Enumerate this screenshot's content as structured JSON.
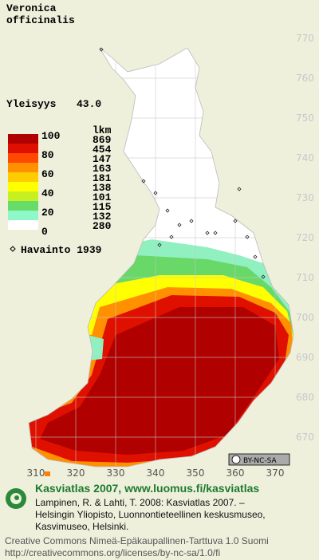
{
  "map": {
    "title_lines": [
      "Veronica",
      "officinalis"
    ],
    "frequency_label": "Yleisyys",
    "frequency_value": "43.0",
    "legend": {
      "header": "lkm",
      "scale_labels": [
        "100",
        "80",
        "60",
        "40",
        "20",
        "0"
      ],
      "counts": [
        "869",
        "454",
        "147",
        "163",
        "181",
        "138",
        "101",
        "115",
        "132",
        "280"
      ],
      "colors": [
        "#b00000",
        "#e01000",
        "#ff4800",
        "#ff9000",
        "#ffcc00",
        "#ffff00",
        "#c8f020",
        "#68dc68",
        "#90f8c8",
        "#d0ffff"
      ]
    },
    "observation_label": "Havainto 1939",
    "grid": {
      "yticks": [
        770,
        760,
        750,
        740,
        730,
        720,
        710,
        700,
        690,
        680,
        670
      ],
      "xticks": [
        310,
        320,
        330,
        340,
        350,
        360,
        370
      ]
    },
    "license_badge": "BY-NC-SA"
  },
  "footer": {
    "site": "Kasviatlas 2007, www.luomus.fi/kasviatlas",
    "citation": [
      "Lampinen, R. & Lahti, T. 2008: Kasviatlas 2007. –",
      "Helsingin Yliopisto, Luonnontieteellinen keskusmuseo,",
      "Kasvimuseo, Helsinki."
    ],
    "license": [
      "Creative Commons Nimeä-Epäkaupallinen-Tarttuva 1.0 Suomi",
      "http://creativecommons.org/licenses/by-nc-sa/1.0/fi"
    ]
  }
}
